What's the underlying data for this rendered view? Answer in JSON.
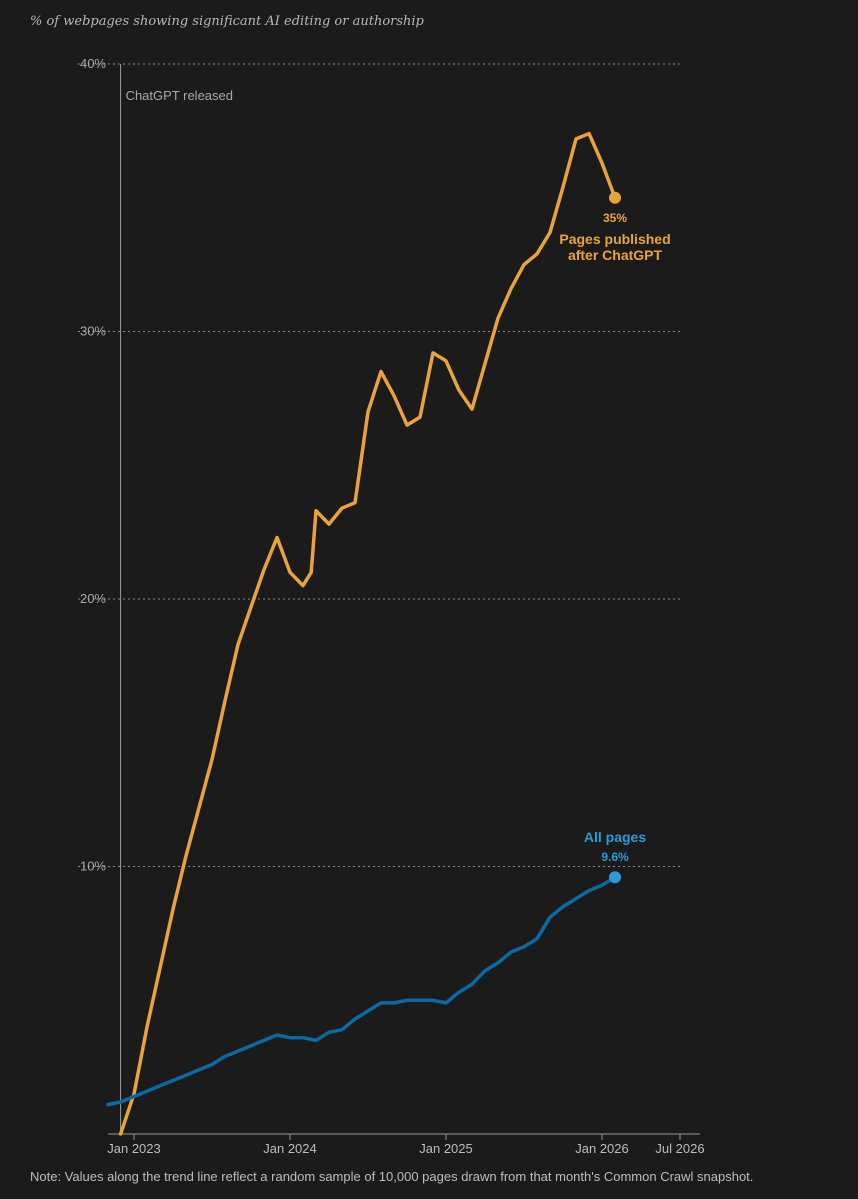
{
  "subtitle": "% of webpages showing significant AI editing or authorship",
  "note": "Note: Values along the trend line reflect a random sample of 10,000 pages drawn from that month's Common Crawl snapshot.",
  "colors": {
    "published_after": "#e8a43a",
    "all_pages": "#0b6aa2",
    "all_pages_label": "#2a9bd6",
    "background": "#1b1b1b"
  },
  "chart_data": {
    "type": "line",
    "title": "",
    "subtitle": "% of webpages showing significant AI editing or authorship",
    "ylim": [
      0,
      40
    ],
    "xlim": [
      "2022-11",
      "2026-07"
    ],
    "yticks": [
      {
        "value": 10,
        "label": "10%"
      },
      {
        "value": 20,
        "label": "20%"
      },
      {
        "value": 30,
        "label": "30%"
      },
      {
        "value": 40,
        "label": "40%"
      }
    ],
    "xticks": [
      {
        "date": "2023-01",
        "label": "Jan 2023"
      },
      {
        "date": "2024-01",
        "label": "Jan 2024"
      },
      {
        "date": "2025-01",
        "label": "Jan 2025"
      },
      {
        "date": "2026-01",
        "label": "Jan 2026"
      },
      {
        "date": "2026-07",
        "label": "Jul 2026"
      }
    ],
    "grid": true,
    "annotations": [
      {
        "date": "2022-11-30",
        "text": "ChatGPT released"
      }
    ],
    "series": [
      {
        "name": "Pages published after ChatGPT",
        "end_value_label": "35%",
        "points": [
          [
            "2022-11-30",
            0.0
          ],
          [
            "2023-01",
            1.5
          ],
          [
            "2023-02",
            4.0
          ],
          [
            "2023-03",
            6.2
          ],
          [
            "2023-04",
            8.4
          ],
          [
            "2023-05",
            10.4
          ],
          [
            "2023-06",
            12.2
          ],
          [
            "2023-07",
            14.0
          ],
          [
            "2023-08",
            16.2
          ],
          [
            "2023-09",
            18.3
          ],
          [
            "2023-10",
            19.7
          ],
          [
            "2023-11",
            21.1
          ],
          [
            "2023-12",
            22.3
          ],
          [
            "2024-01",
            21.0
          ],
          [
            "2024-02",
            20.5
          ],
          [
            "2024-02-20",
            21.0
          ],
          [
            "2024-03",
            23.3
          ],
          [
            "2024-04",
            22.8
          ],
          [
            "2024-05",
            23.4
          ],
          [
            "2024-06",
            23.6
          ],
          [
            "2024-07",
            27.0
          ],
          [
            "2024-08",
            28.5
          ],
          [
            "2024-09",
            27.6
          ],
          [
            "2024-10",
            26.5
          ],
          [
            "2024-11",
            26.8
          ],
          [
            "2024-12",
            29.2
          ],
          [
            "2025-01",
            28.9
          ],
          [
            "2025-02",
            27.8
          ],
          [
            "2025-03",
            27.1
          ],
          [
            "2025-04",
            28.8
          ],
          [
            "2025-05",
            30.5
          ],
          [
            "2025-06",
            31.6
          ],
          [
            "2025-07",
            32.5
          ],
          [
            "2025-08",
            32.9
          ],
          [
            "2025-09",
            33.7
          ],
          [
            "2025-10",
            35.4
          ],
          [
            "2025-11",
            37.2
          ],
          [
            "2025-12",
            37.4
          ],
          [
            "2026-01",
            36.3
          ],
          [
            "2026-02",
            35.0
          ]
        ]
      },
      {
        "name": "All pages",
        "end_value_label": "9.6%",
        "points": [
          [
            "2022-11",
            1.1
          ],
          [
            "2022-12",
            1.2
          ],
          [
            "2023-01",
            1.4
          ],
          [
            "2023-02",
            1.6
          ],
          [
            "2023-03",
            1.8
          ],
          [
            "2023-04",
            2.0
          ],
          [
            "2023-05",
            2.2
          ],
          [
            "2023-06",
            2.4
          ],
          [
            "2023-07",
            2.6
          ],
          [
            "2023-08",
            2.9
          ],
          [
            "2023-09",
            3.1
          ],
          [
            "2023-10",
            3.3
          ],
          [
            "2023-11",
            3.5
          ],
          [
            "2023-12",
            3.7
          ],
          [
            "2024-01",
            3.6
          ],
          [
            "2024-02",
            3.6
          ],
          [
            "2024-03",
            3.5
          ],
          [
            "2024-04",
            3.8
          ],
          [
            "2024-05",
            3.9
          ],
          [
            "2024-06",
            4.3
          ],
          [
            "2024-07",
            4.6
          ],
          [
            "2024-08",
            4.9
          ],
          [
            "2024-09",
            4.9
          ],
          [
            "2024-10",
            5.0
          ],
          [
            "2024-11",
            5.0
          ],
          [
            "2024-12",
            5.0
          ],
          [
            "2025-01",
            4.9
          ],
          [
            "2025-02",
            5.3
          ],
          [
            "2025-03",
            5.6
          ],
          [
            "2025-04",
            6.1
          ],
          [
            "2025-05",
            6.4
          ],
          [
            "2025-06",
            6.8
          ],
          [
            "2025-07",
            7.0
          ],
          [
            "2025-08",
            7.3
          ],
          [
            "2025-09",
            8.1
          ],
          [
            "2025-10",
            8.5
          ],
          [
            "2025-11",
            8.8
          ],
          [
            "2025-12",
            9.1
          ],
          [
            "2026-01",
            9.3
          ],
          [
            "2026-02",
            9.6
          ]
        ]
      }
    ]
  }
}
